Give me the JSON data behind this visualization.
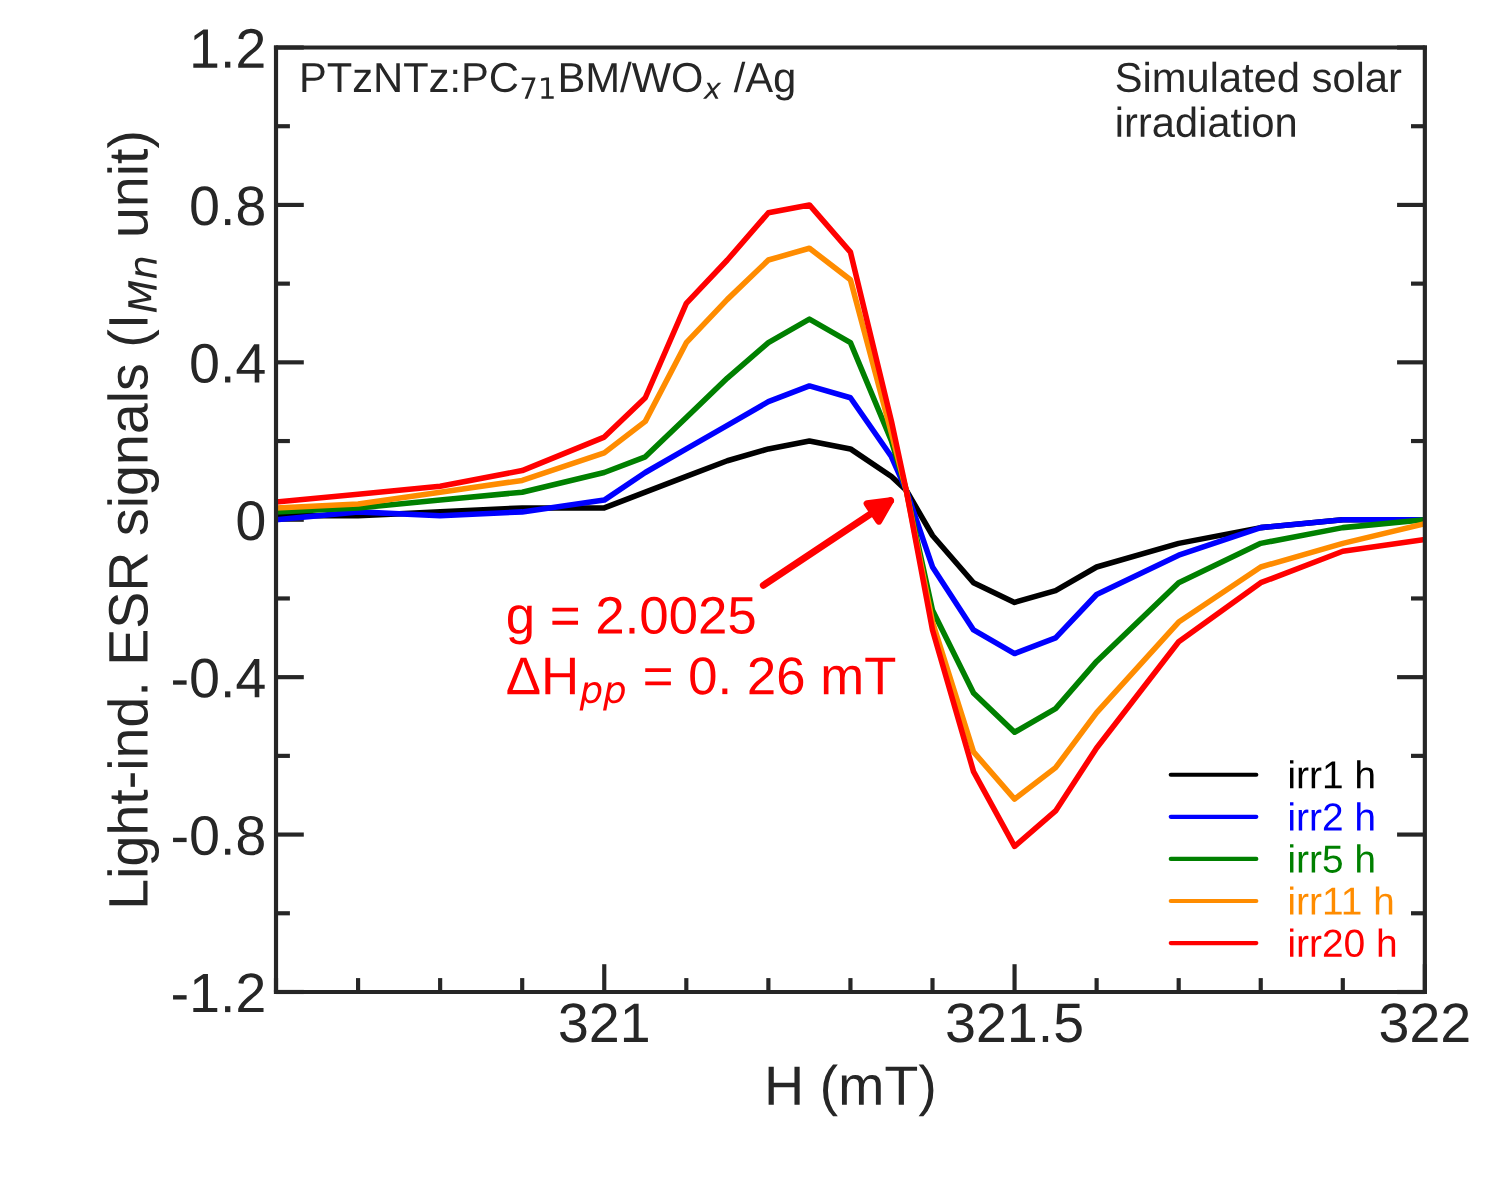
{
  "chart_data": {
    "type": "line",
    "xlabel": "H (mT)",
    "ylabel": "Light-ind. ESR signals (I$_{Mn}$ unit)",
    "x": [
      320.6,
      320.7,
      320.8,
      320.9,
      321.0,
      321.05,
      321.1,
      321.15,
      321.2,
      321.25,
      321.3,
      321.35,
      321.368,
      321.4,
      321.45,
      321.5,
      321.55,
      321.6,
      321.7,
      321.8,
      321.9,
      322.0
    ],
    "series": [
      {
        "name": "irr1 h",
        "color": "#000000",
        "values": [
          0.01,
          0.01,
          0.02,
          0.03,
          0.03,
          0.07,
          0.11,
          0.15,
          0.18,
          0.2,
          0.18,
          0.11,
          0.075,
          -0.04,
          -0.16,
          -0.21,
          -0.18,
          -0.12,
          -0.06,
          -0.02,
          0.0,
          0.0
        ]
      },
      {
        "name": "irr2 h",
        "color": "#0000ff",
        "values": [
          0.0,
          0.02,
          0.01,
          0.02,
          0.05,
          0.12,
          0.18,
          0.24,
          0.3,
          0.34,
          0.31,
          0.16,
          0.075,
          -0.12,
          -0.28,
          -0.34,
          -0.3,
          -0.19,
          -0.09,
          -0.02,
          0.0,
          0.0
        ]
      },
      {
        "name": "irr5 h",
        "color": "#008000",
        "values": [
          0.02,
          0.03,
          0.05,
          0.07,
          0.12,
          0.16,
          0.26,
          0.36,
          0.45,
          0.51,
          0.45,
          0.2,
          0.075,
          -0.23,
          -0.44,
          -0.54,
          -0.48,
          -0.36,
          -0.16,
          -0.06,
          -0.02,
          0.0
        ]
      },
      {
        "name": "irr11 h",
        "color": "#ff8c00",
        "values": [
          0.03,
          0.04,
          0.07,
          0.1,
          0.17,
          0.25,
          0.45,
          0.56,
          0.66,
          0.69,
          0.61,
          0.22,
          0.075,
          -0.26,
          -0.59,
          -0.71,
          -0.63,
          -0.49,
          -0.26,
          -0.12,
          -0.06,
          -0.01
        ]
      },
      {
        "name": "irr20 h",
        "color": "#ff0000",
        "values": [
          0.045,
          0.065,
          0.085,
          0.125,
          0.21,
          0.31,
          0.55,
          0.66,
          0.78,
          0.8,
          0.68,
          0.25,
          0.075,
          -0.28,
          -0.64,
          -0.83,
          -0.74,
          -0.58,
          -0.31,
          -0.16,
          -0.08,
          -0.05
        ]
      }
    ],
    "xlim": [
      320.6,
      322.0
    ],
    "xticks": [
      321,
      321.5,
      322
    ],
    "ylim": [
      -1.2,
      1.2
    ],
    "yticks": [
      -1.2,
      -0.8,
      -0.4,
      0,
      0.4,
      0.8,
      1.2
    ],
    "annotations": [
      "PTzNTz:PC$_{71}$BM/WO$_{x}$ /Ag",
      "Simulated solar\nirradiation",
      {
        "text": "g = 2.0025\nΔH$_{pp}$ = 0. 26 mT",
        "x": 321.368,
        "y": 0.075
      }
    ],
    "legend": "bottom right",
    "grid": false,
    "marker": "none",
    "line_style": "solid"
  }
}
